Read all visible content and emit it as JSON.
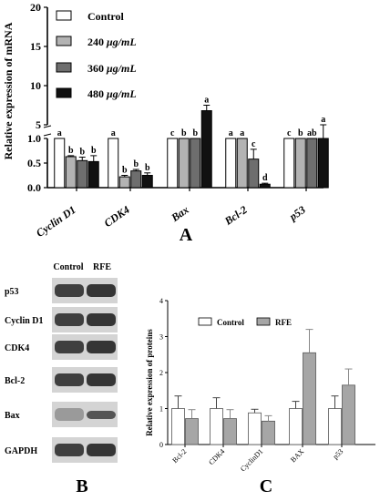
{
  "chart_data": [
    {
      "type": "bar",
      "panel": "A",
      "ylabel": "Relative expression of mRNA",
      "categories": [
        "Cyclin D1",
        "CDK4",
        "Bax",
        "Bcl-2",
        "p53"
      ],
      "axis_break": {
        "lower": [
          0,
          1.0
        ],
        "upper": [
          5,
          20
        ]
      },
      "ticks_lower": [
        "0.0",
        "0.5",
        "1.0"
      ],
      "ticks_upper": [
        "5",
        "10",
        "15",
        "20"
      ],
      "series": [
        {
          "name": "Control",
          "color": "#ffffff",
          "values": [
            1.0,
            1.0,
            1.0,
            1.0,
            1.0
          ],
          "errors": [
            0,
            0,
            0,
            0,
            0
          ],
          "letters": [
            "a",
            "a",
            "c",
            "a",
            "c"
          ]
        },
        {
          "name": "240 μg/mL",
          "color": "#b3b3b3",
          "values": [
            0.63,
            0.22,
            2.3,
            1.05,
            2.8
          ],
          "errors": [
            0.02,
            0.03,
            0.2,
            0.1,
            0.3
          ],
          "letters": [
            "b",
            "b",
            "b",
            "a",
            "b"
          ]
        },
        {
          "name": "360 μg/mL",
          "color": "#6e6e6e",
          "values": [
            0.55,
            0.34,
            2.6,
            0.58,
            3.3
          ],
          "errors": [
            0.07,
            0.03,
            0.2,
            0.2,
            0.5
          ],
          "letters": [
            "b",
            "b",
            "b",
            "c",
            "ab"
          ]
        },
        {
          "name": "480 μg/mL",
          "color": "#111111",
          "values": [
            0.53,
            0.25,
            6.8,
            0.07,
            4.4
          ],
          "errors": [
            0.12,
            0.05,
            0.7,
            0.02,
            0.6
          ],
          "letters": [
            "b",
            "b",
            "a",
            "d",
            "a"
          ]
        }
      ],
      "legend_entries": [
        "Control",
        "240 ",
        "μg/mL",
        "360 ",
        "μg/mL",
        "480 ",
        "μg/mL"
      ],
      "legend_position": "top-left"
    },
    {
      "type": "bar",
      "panel": "C",
      "ylabel": "Relative expression of proteins",
      "categories": [
        "Bcl-2",
        "CDK4",
        "CyclinD1",
        "BAX",
        "p53"
      ],
      "ylim": [
        0,
        4
      ],
      "ticks": [
        "0",
        "1",
        "2",
        "3",
        "4"
      ],
      "series": [
        {
          "name": "Control",
          "color": "#ffffff",
          "values": [
            1.0,
            1.0,
            0.88,
            1.0,
            1.0
          ],
          "errors": [
            0.35,
            0.3,
            0.1,
            0.2,
            0.35
          ]
        },
        {
          "name": "RFE",
          "color": "#a6a6a6",
          "values": [
            0.72,
            0.72,
            0.65,
            2.55,
            1.65
          ],
          "errors": [
            0.25,
            0.25,
            0.15,
            0.65,
            0.45
          ]
        }
      ],
      "legend_position": "top"
    }
  ],
  "blot": {
    "col_labels": [
      "Control",
      "RFE"
    ],
    "rows": [
      "p53",
      "Cyclin D1",
      "CDK4",
      "Bcl-2",
      "Bax",
      "GAPDH"
    ]
  },
  "panel_labels": {
    "a": "A",
    "b": "B",
    "c": "C"
  }
}
